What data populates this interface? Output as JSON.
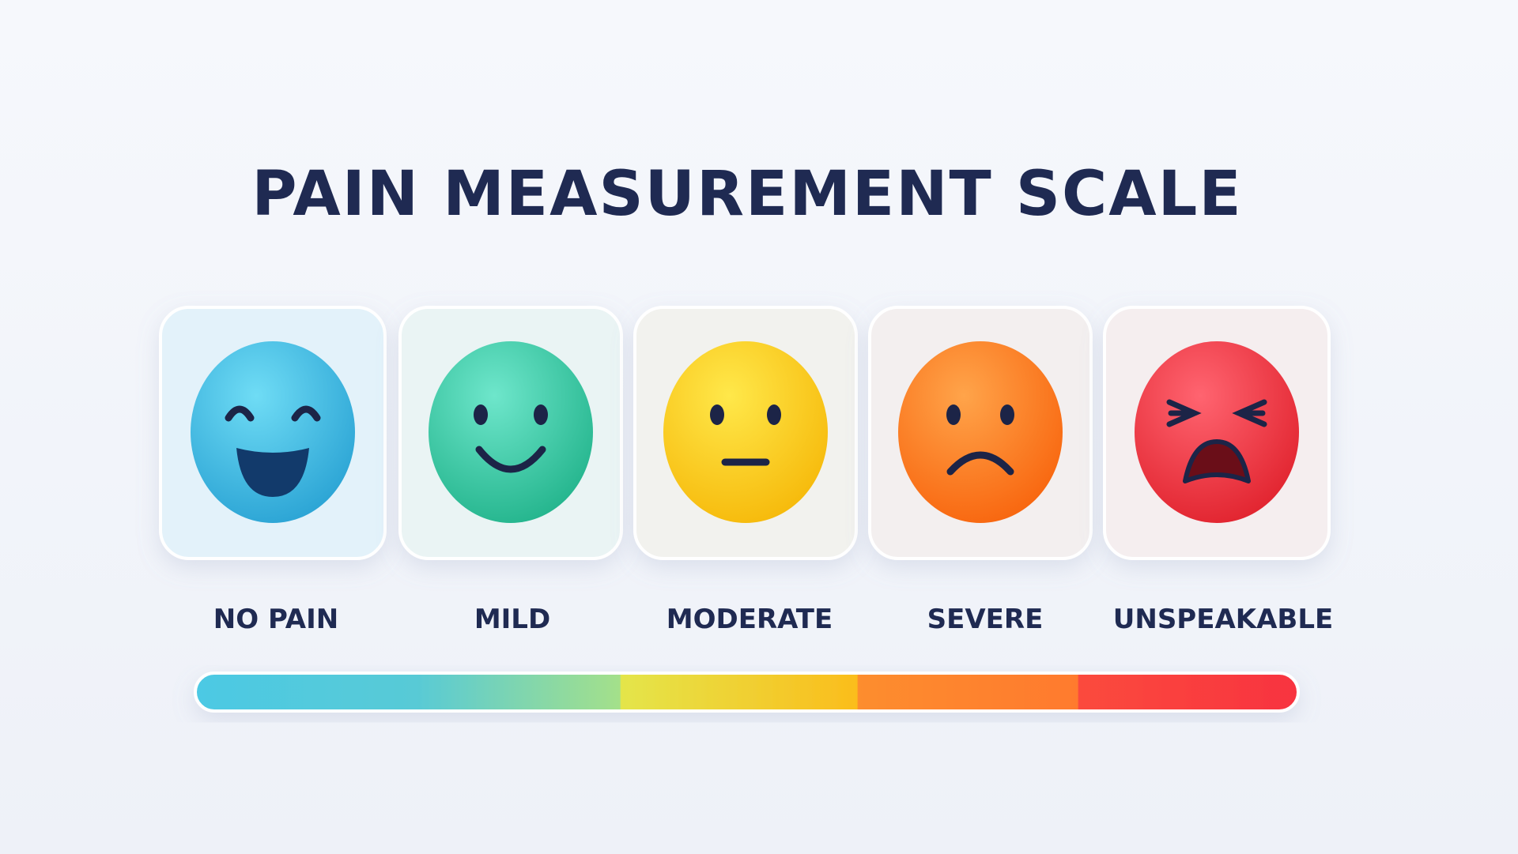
{
  "title": "PAIN MEASUREMENT SCALE",
  "levels": [
    {
      "label": "NO PAIN"
    },
    {
      "label": "MILD"
    },
    {
      "label": "MODERATE"
    },
    {
      "label": "SEVERE"
    },
    {
      "label": "UNSPEAKABLE"
    }
  ]
}
